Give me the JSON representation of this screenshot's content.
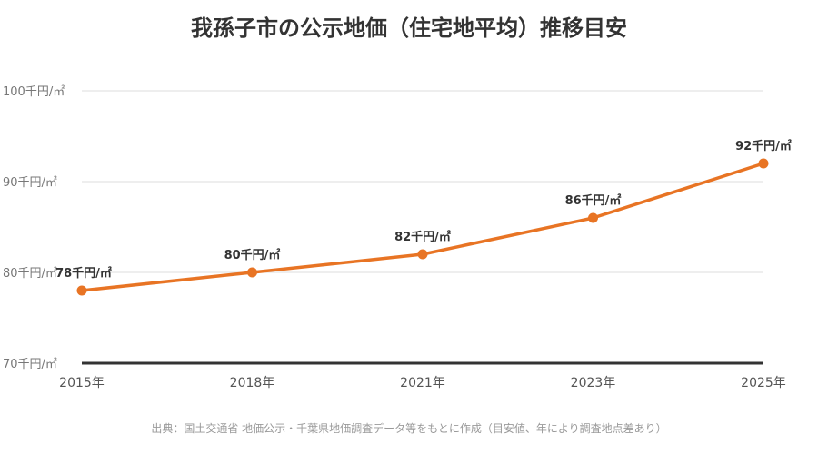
{
  "title": "我孫子市の公示地価（住宅地平均）推移目安",
  "source_note": "出典：国土交通省 地価公示・千葉県地価調査データ等をもとに作成（目安値、年により調査地点差あり）",
  "colors": {
    "line": "#e87424",
    "grid": "#dddddd",
    "axis": "#333333",
    "tick_text": "#777777",
    "label_text": "#333333"
  },
  "chart_data": {
    "type": "line",
    "x": [
      "2015年",
      "2018年",
      "2021年",
      "2023年",
      "2025年"
    ],
    "series": [
      {
        "values": [
          78,
          80,
          82,
          86,
          92
        ],
        "data_labels": [
          "78千円/㎡",
          "80千円/㎡",
          "82千円/㎡",
          "86千円/㎡",
          "92千円/㎡"
        ]
      }
    ],
    "ylim": [
      70,
      100
    ],
    "yticks": [
      70,
      80,
      90,
      100
    ],
    "ytick_labels": [
      "70千円/㎡",
      "80千円/㎡",
      "90千円/㎡",
      "100千円/㎡"
    ],
    "grid": true,
    "legend": "none"
  }
}
